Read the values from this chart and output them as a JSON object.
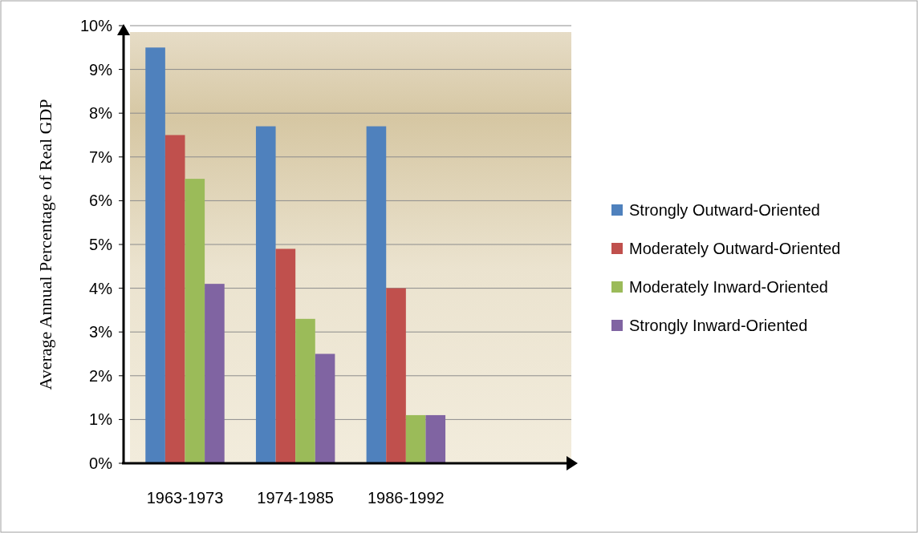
{
  "chart_data": {
    "type": "bar",
    "ylabel": "Average Annual Percentage of Real GDP",
    "categories": [
      "1963-1973",
      "1974-1985",
      "1986-1992",
      null
    ],
    "series": [
      {
        "name": "Strongly Outward-Oriented",
        "color": "#4f81bd",
        "values": [
          9.5,
          7.7,
          7.7,
          null
        ]
      },
      {
        "name": "Moderately Outward-Oriented",
        "color": "#c0504d",
        "values": [
          7.5,
          4.9,
          4.0,
          null
        ]
      },
      {
        "name": "Moderately Inward-Oriented",
        "color": "#9bbb59",
        "values": [
          6.5,
          3.3,
          1.1,
          null
        ]
      },
      {
        "name": "Strongly Inward-Oriented",
        "color": "#8064a2",
        "values": [
          4.1,
          2.5,
          1.1,
          null
        ]
      }
    ],
    "ylim": [
      0,
      10
    ],
    "yticks": [
      {
        "value": 0,
        "label": "0%"
      },
      {
        "value": 1,
        "label": "1%"
      },
      {
        "value": 2,
        "label": "2%"
      },
      {
        "value": 3,
        "label": "3%"
      },
      {
        "value": 4,
        "label": "4%"
      },
      {
        "value": 5,
        "label": "5%"
      },
      {
        "value": 6,
        "label": "6%"
      },
      {
        "value": 7,
        "label": "7%"
      },
      {
        "value": 8,
        "label": "8%"
      },
      {
        "value": 9,
        "label": "9%"
      },
      {
        "value": 10,
        "label": "10%"
      }
    ],
    "grid": "y",
    "legend": "right"
  }
}
